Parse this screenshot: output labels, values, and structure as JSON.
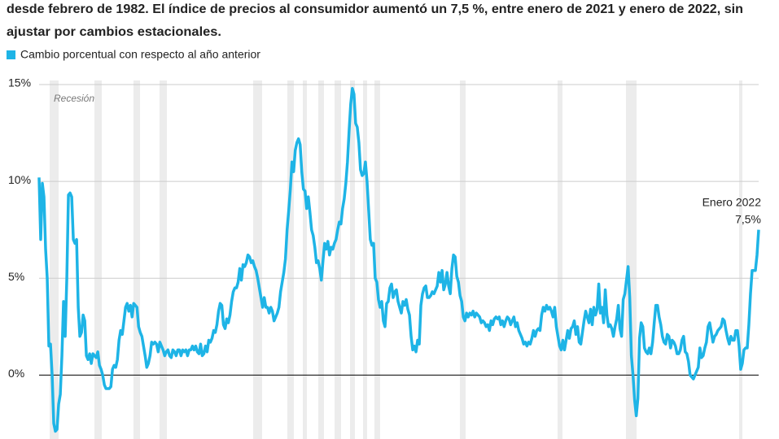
{
  "chart_data": {
    "type": "line",
    "subtitle": [
      "desde febrero de 1982. El índice de precios al consumidor aumentó un 7,5 %, entre enero de 2021 y enero de 2022, sin",
      "ajustar por cambios estacionales."
    ],
    "recession_label": "Recesión",
    "series": [
      {
        "name": "Cambio porcentual con respecto al año anterior",
        "color": "#1eb4e6",
        "values": [
          10.2,
          7.0,
          9.9,
          9.2,
          6.5,
          5.0,
          1.5,
          1.6,
          0,
          -2.5,
          -2.9,
          -2.8,
          -1.5,
          -1.0,
          1.0,
          3.8,
          2.0,
          5.0,
          9.3,
          9.4,
          9.2,
          7.0,
          6.8,
          7.0,
          3.5,
          2.0,
          2.2,
          3.1,
          2.8,
          1.0,
          0.8,
          1.1,
          0.6,
          1.1,
          1.0,
          0.9,
          1.2,
          0.5,
          0.3,
          0.0,
          -0.5,
          -0.7,
          -0.7,
          -0.7,
          -0.6,
          0.3,
          0.5,
          0.4,
          0.8,
          1.8,
          2.3,
          2.1,
          2.8,
          3.5,
          3.7,
          3.3,
          3.6,
          3.0,
          3.7,
          3.6,
          3.5,
          2.5,
          2.2,
          2.0,
          1.5,
          1.0,
          0.4,
          0.6,
          1.0,
          1.7,
          1.6,
          1.7,
          1.6,
          1.2,
          1.7,
          1.5,
          1.3,
          1.0,
          1.2,
          1.3,
          1.0,
          0.9,
          1.3,
          1.2,
          1.0,
          1.3,
          1.3,
          1.0,
          1.3,
          1.2,
          1.3,
          1.0,
          1.3,
          1.3,
          1.5,
          1.3,
          1.5,
          1.2,
          1.1,
          1.6,
          1.0,
          1.1,
          1.5,
          1.2,
          1.8,
          1.7,
          1.9,
          2.3,
          2.2,
          2.6,
          3.3,
          3.7,
          3.6,
          2.6,
          2.4,
          2.9,
          2.7,
          3.1,
          3.8,
          4.3,
          4.5,
          4.5,
          4.8,
          5.5,
          4.9,
          5.7,
          5.6,
          5.8,
          6.2,
          6.1,
          5.8,
          5.9,
          5.6,
          5.4,
          5.0,
          4.5,
          4.0,
          3.5,
          4.0,
          3.5,
          3.5,
          3.2,
          3.5,
          3.3,
          2.8,
          3.0,
          3.2,
          3.5,
          4.3,
          4.8,
          5.3,
          6.0,
          7.5,
          8.5,
          9.6,
          11.0,
          10.5,
          11.6,
          12.0,
          12.2,
          11.9,
          10.5,
          9.6,
          9.5,
          8.6,
          9.2,
          8.4,
          7.5,
          7.2,
          6.6,
          5.8,
          5.9,
          5.5,
          4.9,
          5.9,
          6.8,
          6.5,
          6.9,
          6.2,
          6.6,
          6.5,
          6.8,
          7.0,
          7.5,
          7.9,
          7.8,
          8.6,
          9.1,
          9.9,
          11.0,
          12.6,
          14.0,
          14.8,
          14.5,
          13.0,
          12.8,
          12.0,
          10.6,
          10.3,
          10.4,
          11.0,
          10.0,
          8.5,
          7.0,
          6.7,
          6.8,
          5.0,
          4.8,
          3.9,
          3.5,
          3.8,
          2.8,
          2.5,
          3.7,
          3.8,
          4.5,
          4.7,
          4.0,
          4.3,
          4.4,
          3.8,
          3.5,
          3.2,
          3.8,
          3.6,
          3.9,
          3.4,
          3.1,
          2.0,
          1.3,
          1.5,
          1.2,
          1.8,
          1.6,
          3.6,
          4.2,
          4.5,
          4.6,
          4.0,
          4.0,
          4.1,
          4.3,
          4.2,
          4.4,
          4.6,
          5.3,
          4.8,
          5.4,
          4.4,
          4.7,
          5.3,
          4.6,
          4.2,
          5.5,
          6.2,
          6.1,
          5.1,
          4.8,
          4.1,
          3.8,
          3.0,
          2.8,
          3.2,
          3.0,
          3.2,
          3.1,
          3.3,
          3.0,
          3.2,
          3.1,
          3.0,
          2.7,
          2.8,
          2.7,
          2.5,
          2.6,
          2.3,
          2.8,
          2.6,
          2.9,
          3.0,
          2.9,
          3.0,
          2.6,
          2.8,
          2.5,
          2.8,
          3.0,
          2.9,
          2.6,
          2.8,
          3.0,
          2.5,
          2.7,
          2.3,
          2.1,
          1.9,
          1.6,
          1.7,
          1.5,
          1.7,
          1.6,
          1.9,
          2.3,
          2.0,
          2.3,
          2.4,
          2.3,
          3.1,
          3.5,
          3.3,
          3.6,
          3.4,
          3.5,
          3.3,
          3.0,
          3.5,
          2.5,
          2.0,
          1.5,
          1.3,
          1.8,
          1.3,
          1.8,
          2.3,
          1.9,
          2.4,
          2.5,
          2.8,
          2.1,
          2.5,
          1.7,
          1.6,
          2.2,
          2.8,
          3.3,
          3.0,
          2.7,
          3.4,
          2.6,
          3.5,
          3.1,
          3.4,
          4.7,
          3.2,
          3.5,
          2.7,
          4.4,
          3.1,
          2.5,
          2.6,
          2.4,
          2.0,
          2.5,
          2.9,
          3.6,
          2.4,
          2.0,
          3.9,
          4.2,
          4.9,
          5.6,
          4.0,
          1.0,
          0.0,
          -1.3,
          -2.1,
          -1.2,
          1.9,
          2.7,
          2.5,
          1.4,
          1.2,
          1.1,
          1.4,
          1.1,
          1.7,
          2.7,
          3.6,
          3.6,
          3.0,
          2.6,
          2.0,
          1.7,
          1.6,
          2.1,
          2.0,
          1.4,
          1.8,
          1.7,
          1.5,
          1.1,
          1.1,
          1.3,
          1.8,
          2.0,
          1.2,
          1.1,
          0.7,
          0.0,
          -0.1,
          -0.2,
          0.0,
          0.2,
          0.4,
          1.4,
          0.9,
          1.0,
          1.4,
          1.7,
          2.5,
          2.7,
          2.2,
          1.7,
          2.0,
          2.1,
          2.3,
          2.4,
          2.5,
          2.9,
          2.8,
          2.3,
          1.9,
          1.6,
          2.0,
          1.8,
          1.8,
          2.3,
          2.3,
          1.5,
          0.3,
          0.6,
          1.3,
          1.4,
          1.4,
          2.6,
          4.2,
          5.4,
          5.4,
          5.4,
          6.2,
          7.5
        ]
      }
    ],
    "annotation": {
      "label": "Enero 2022",
      "value_label": "7,5%"
    },
    "ylim": [
      -3.3,
      15.2
    ],
    "yticks": [
      {
        "value": 0,
        "label": "0%"
      },
      {
        "value": 5,
        "label": "5%"
      },
      {
        "value": 10,
        "label": "10%"
      },
      {
        "value": 15,
        "label": "15%"
      }
    ],
    "grid": true
  }
}
